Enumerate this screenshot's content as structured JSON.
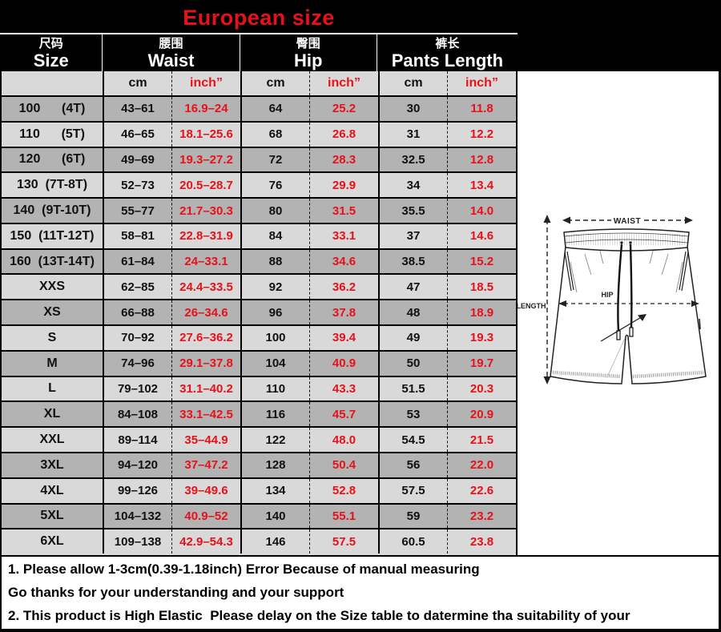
{
  "title": "European size",
  "colors": {
    "accent_red": "#e8111a",
    "row_dark": "#b3b3b3",
    "row_light": "#d9d9d9",
    "band_black": "#000000"
  },
  "table": {
    "groups": [
      {
        "cn": "尺码",
        "en": "Size"
      },
      {
        "cn": "腰围",
        "en": "Waist"
      },
      {
        "cn": "臀围",
        "en": "Hip"
      },
      {
        "cn": "裤长",
        "en": "Pants Length"
      }
    ],
    "unit_cm": "cm",
    "unit_inch": "inch”",
    "rows": [
      {
        "size": "100      (4T)",
        "waist_cm": "43–61",
        "waist_in": "16.9–24",
        "hip_cm": "64",
        "hip_in": "25.2",
        "len_cm": "30",
        "len_in": "11.8"
      },
      {
        "size": "110      (5T)",
        "waist_cm": "46–65",
        "waist_in": "18.1–25.6",
        "hip_cm": "68",
        "hip_in": "26.8",
        "len_cm": "31",
        "len_in": "12.2"
      },
      {
        "size": "120      (6T)",
        "waist_cm": "49–69",
        "waist_in": "19.3–27.2",
        "hip_cm": "72",
        "hip_in": "28.3",
        "len_cm": "32.5",
        "len_in": "12.8"
      },
      {
        "size": "130  (7T-8T)",
        "waist_cm": "52–73",
        "waist_in": "20.5–28.7",
        "hip_cm": "76",
        "hip_in": "29.9",
        "len_cm": "34",
        "len_in": "13.4"
      },
      {
        "size": "140  (9T-10T)",
        "waist_cm": "55–77",
        "waist_in": "21.7–30.3",
        "hip_cm": "80",
        "hip_in": "31.5",
        "len_cm": "35.5",
        "len_in": "14.0"
      },
      {
        "size": "150  (11T-12T)",
        "waist_cm": "58–81",
        "waist_in": "22.8–31.9",
        "hip_cm": "84",
        "hip_in": "33.1",
        "len_cm": "37",
        "len_in": "14.6"
      },
      {
        "size": "160  (13T-14T)",
        "waist_cm": "61–84",
        "waist_in": "24–33.1",
        "hip_cm": "88",
        "hip_in": "34.6",
        "len_cm": "38.5",
        "len_in": "15.2"
      },
      {
        "size": "XXS",
        "waist_cm": "62–85",
        "waist_in": "24.4–33.5",
        "hip_cm": "92",
        "hip_in": "36.2",
        "len_cm": "47",
        "len_in": "18.5"
      },
      {
        "size": "XS",
        "waist_cm": "66–88",
        "waist_in": "26–34.6",
        "hip_cm": "96",
        "hip_in": "37.8",
        "len_cm": "48",
        "len_in": "18.9"
      },
      {
        "size": "S",
        "waist_cm": "70–92",
        "waist_in": "27.6–36.2",
        "hip_cm": "100",
        "hip_in": "39.4",
        "len_cm": "49",
        "len_in": "19.3"
      },
      {
        "size": "M",
        "waist_cm": "74–96",
        "waist_in": "29.1–37.8",
        "hip_cm": "104",
        "hip_in": "40.9",
        "len_cm": "50",
        "len_in": "19.7"
      },
      {
        "size": "L",
        "waist_cm": "79–102",
        "waist_in": "31.1–40.2",
        "hip_cm": "110",
        "hip_in": "43.3",
        "len_cm": "51.5",
        "len_in": "20.3"
      },
      {
        "size": "XL",
        "waist_cm": "84–108",
        "waist_in": "33.1–42.5",
        "hip_cm": "116",
        "hip_in": "45.7",
        "len_cm": "53",
        "len_in": "20.9"
      },
      {
        "size": "XXL",
        "waist_cm": "89–114",
        "waist_in": "35–44.9",
        "hip_cm": "122",
        "hip_in": "48.0",
        "len_cm": "54.5",
        "len_in": "21.5"
      },
      {
        "size": "3XL",
        "waist_cm": "94–120",
        "waist_in": "37–47.2",
        "hip_cm": "128",
        "hip_in": "50.4",
        "len_cm": "56",
        "len_in": "22.0"
      },
      {
        "size": "4XL",
        "waist_cm": "99–126",
        "waist_in": "39–49.6",
        "hip_cm": "134",
        "hip_in": "52.8",
        "len_cm": "57.5",
        "len_in": "22.6"
      },
      {
        "size": "5XL",
        "waist_cm": "104–132",
        "waist_in": "40.9–52",
        "hip_cm": "140",
        "hip_in": "55.1",
        "len_cm": "59",
        "len_in": "23.2"
      },
      {
        "size": "6XL",
        "waist_cm": "109–138",
        "waist_in": "42.9–54.3",
        "hip_cm": "146",
        "hip_in": "57.5",
        "len_cm": "60.5",
        "len_in": "23.8"
      }
    ]
  },
  "diagram": {
    "waist_label": "WAIST",
    "hip_label": "HIP",
    "length_label": "LENGTH"
  },
  "notes": [
    "1. Please allow 1-3cm(0.39-1.18inch) Error Because of manual measuring",
    "Go thanks for your understanding and your support",
    "2. This product is High Elastic  Please delay on the Size table to datermine tha suitability of your"
  ]
}
